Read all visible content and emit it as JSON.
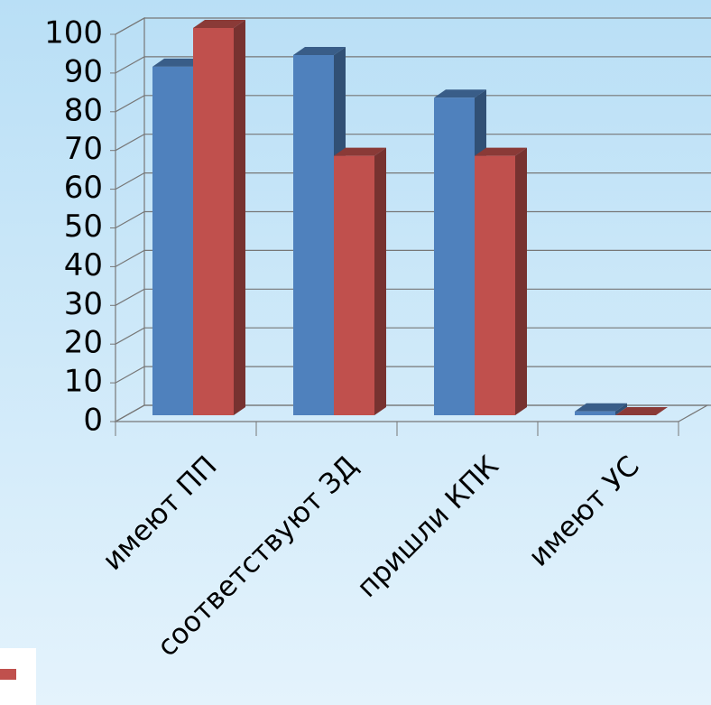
{
  "chart_data": {
    "type": "bar3d",
    "categories": [
      "имеют ПП",
      "соответствуют ЗД",
      "пришли КПК",
      "имеют УС"
    ],
    "series": [
      {
        "color": "#4f81bd",
        "values": [
          90,
          93,
          82,
          1
        ]
      },
      {
        "color": "#c0504d",
        "values": [
          100,
          67,
          67,
          0
        ]
      }
    ],
    "ylim": [
      0,
      100
    ],
    "yticks": [
      0,
      10,
      20,
      30,
      40,
      50,
      60,
      70,
      80,
      90,
      100
    ],
    "grid": true
  }
}
